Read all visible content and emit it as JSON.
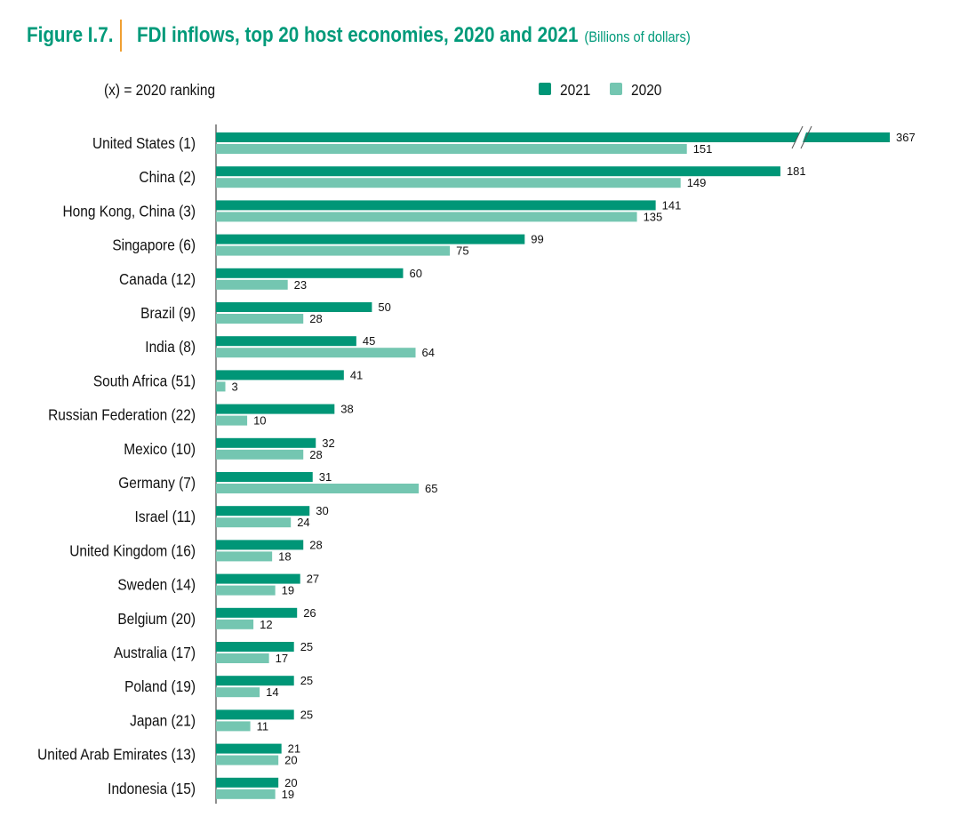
{
  "chart_data": {
    "type": "bar",
    "orientation": "horizontal",
    "figure_label": "Figure I.7.",
    "title": "FDI inflows, top 20 host economies, 2020 and 2021",
    "subtitle": "(Billions of dollars)",
    "note": "(x) = 2020  ranking",
    "legend_position": "top-right",
    "axis_break": "United States 2021 bar is truncated",
    "categories": [
      "United States (1)",
      "China (2)",
      "Hong Kong, China (3)",
      "Singapore (6)",
      "Canada (12)",
      "Brazil (9)",
      "India (8)",
      "South Africa (51)",
      "Russian Federation (22)",
      "Mexico (10)",
      "Germany (7)",
      "Israel (11)",
      "United Kingdom (16)",
      "Sweden (14)",
      "Belgium (20)",
      "Australia (17)",
      "Poland (19)",
      "Japan (21)",
      "United Arab Emirates (13)",
      "Indonesia (15)"
    ],
    "series": [
      {
        "name": "2021",
        "color": "#009677",
        "values": [
          367,
          181,
          141,
          99,
          60,
          50,
          45,
          41,
          38,
          32,
          31,
          30,
          28,
          27,
          26,
          25,
          25,
          25,
          21,
          20
        ]
      },
      {
        "name": "2020",
        "color": "#74c6b1",
        "values": [
          151,
          149,
          135,
          75,
          23,
          28,
          64,
          3,
          10,
          28,
          65,
          24,
          18,
          19,
          12,
          17,
          14,
          11,
          20,
          19
        ]
      }
    ],
    "grid": false
  },
  "colors": {
    "title": "#009a7a",
    "divider": "#f0a032"
  }
}
